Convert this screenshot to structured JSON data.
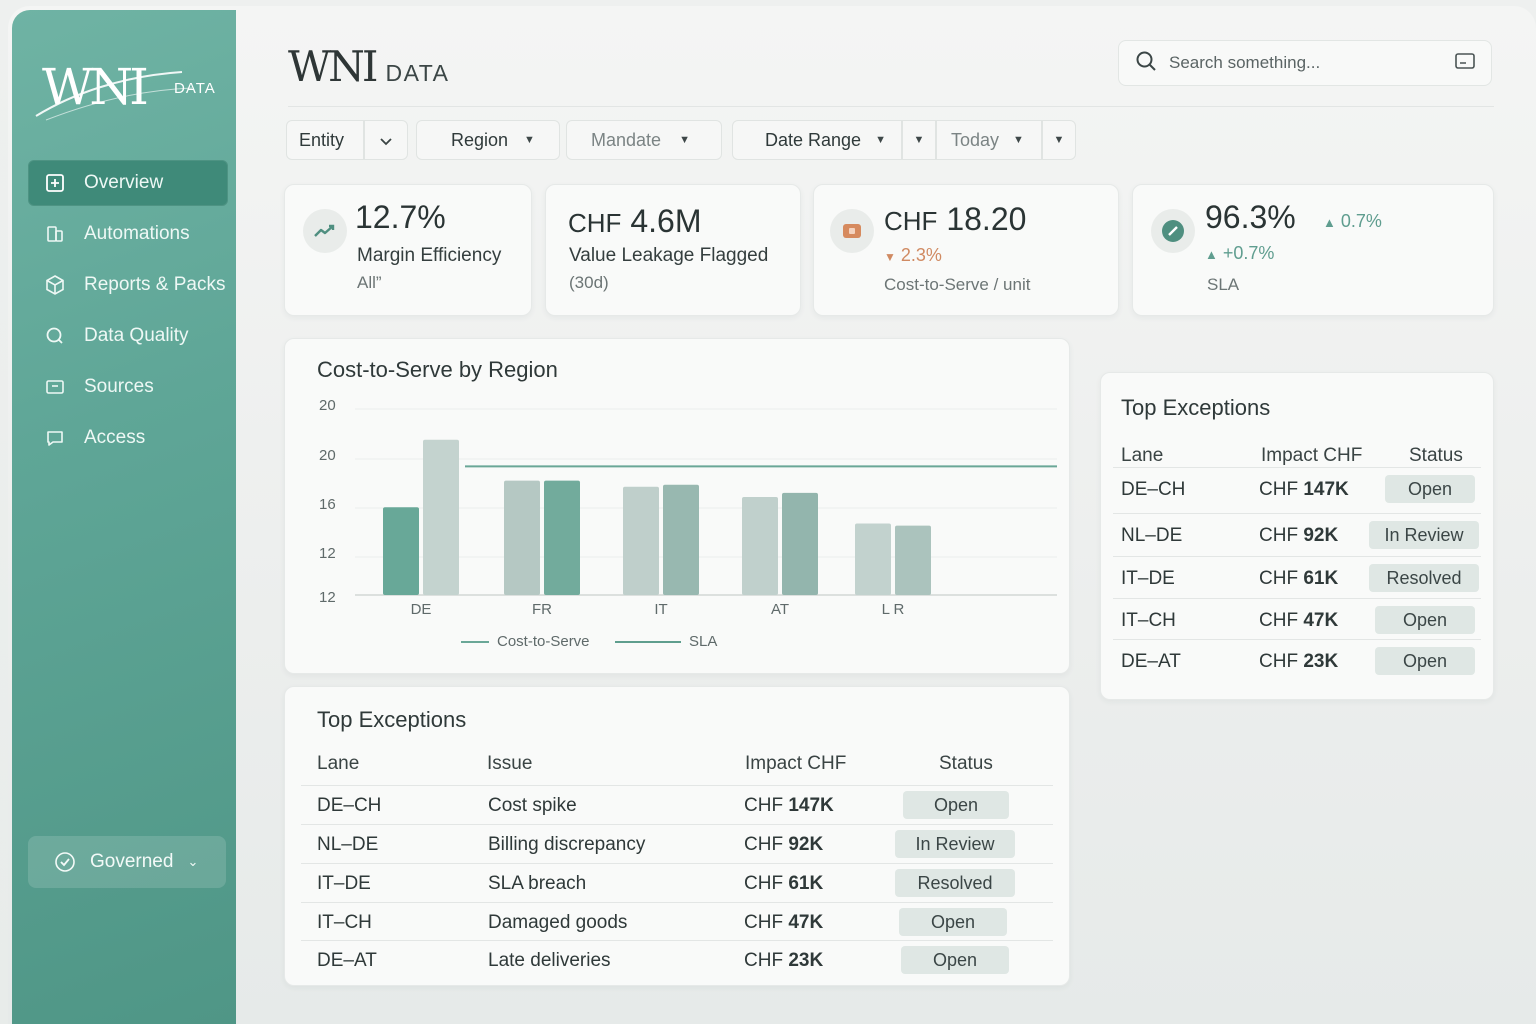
{
  "sidebar": {
    "logo_mark": "WNI",
    "logo_sub": "DATA",
    "items": [
      {
        "label": "Overview",
        "icon": "plus-square-icon"
      },
      {
        "label": "Automations",
        "icon": "automations-icon"
      },
      {
        "label": "Reports & Packs",
        "icon": "box-icon"
      },
      {
        "label": "Data Quality",
        "icon": "magnifier-icon"
      },
      {
        "label": "Sources",
        "icon": "inbox-icon"
      },
      {
        "label": "Access",
        "icon": "chat-icon"
      }
    ],
    "governed_label": "Governed"
  },
  "header": {
    "brand": "WNI",
    "brand_sub": "DATA",
    "search_placeholder": "Search something..."
  },
  "filters": {
    "entity": "Entity",
    "region": "Region",
    "mandate": "Mandate",
    "date_range": "Date Range",
    "today": "Today"
  },
  "kpis": [
    {
      "value": "12.7%",
      "label": "Margin Efficiency",
      "sub": "All”",
      "icon": "trend-up-icon"
    },
    {
      "prefix": "CHF",
      "value": "4.6M",
      "label": "Value Leakage Flagged",
      "sub": "(30d)"
    },
    {
      "prefix": "CHF",
      "value": "18.20",
      "delta": "2.3%",
      "label": "Cost-to-Serve / unit",
      "icon": "tag-icon",
      "accent": "#d68a5e"
    },
    {
      "value": "96.3%",
      "delta_top": "0.7%",
      "delta": "+0.7%",
      "label": "SLA",
      "icon": "gauge-icon"
    }
  ],
  "chart_data": {
    "type": "bar",
    "title": "Cost-to-Serve by Region",
    "categories": [
      "DE",
      "FR",
      "IT",
      "AT",
      "L R"
    ],
    "y_tick_labels": [
      "20",
      "20",
      "16",
      "12",
      "12"
    ],
    "series": [
      {
        "name": "Cost-to-Serve",
        "values": [
          16.3,
          17.6,
          17.3,
          16.8,
          15.5
        ]
      },
      {
        "name": "SLA",
        "values": [
          19.6,
          17.6,
          17.4,
          17.0,
          15.4
        ]
      }
    ],
    "sla_line": 18.3,
    "ylim": [
      12,
      21.5
    ],
    "colors": {
      "primary": "#68a898",
      "secondary": "#b9cdc8"
    },
    "legend": "bottom"
  },
  "exceptions_main": {
    "title": "Top Exceptions",
    "headers": [
      "Lane",
      "Issue",
      "Impact CHF",
      "Status"
    ],
    "rows": [
      {
        "lane": "DE–CH",
        "issue": "Cost spike",
        "cur": "CHF",
        "amt": "147K",
        "status": "Open"
      },
      {
        "lane": "NL–DE",
        "issue": "Billing discrepancy",
        "cur": "CHF",
        "amt": "92K",
        "status": "In Review"
      },
      {
        "lane": "IT–DE",
        "issue": "SLA breach",
        "cur": "CHF",
        "amt": "61K",
        "status": "Resolved"
      },
      {
        "lane": "IT–CH",
        "issue": "Damaged goods",
        "cur": "CHF",
        "amt": "47K",
        "status": "Open"
      },
      {
        "lane": "DE–AT",
        "issue": "Late deliveries",
        "cur": "CHF",
        "amt": "23K",
        "status": "Open"
      }
    ]
  },
  "exceptions_side": {
    "title": "Top Exceptions",
    "headers": [
      "Lane",
      "Impact CHF",
      "Status"
    ],
    "rows": [
      {
        "lane": "DE–CH",
        "cur": "CHF",
        "amt": "147K",
        "status": "Open"
      },
      {
        "lane": "NL–DE",
        "cur": "CHF",
        "amt": "92K",
        "status": "In Review"
      },
      {
        "lane": "IT–DE",
        "cur": "CHF",
        "amt": "61K",
        "status": "Resolved"
      },
      {
        "lane": "IT–CH",
        "cur": "CHF",
        "amt": "47K",
        "status": "Open"
      },
      {
        "lane": "DE–AT",
        "cur": "CHF",
        "amt": "23K",
        "status": "Open"
      }
    ]
  }
}
